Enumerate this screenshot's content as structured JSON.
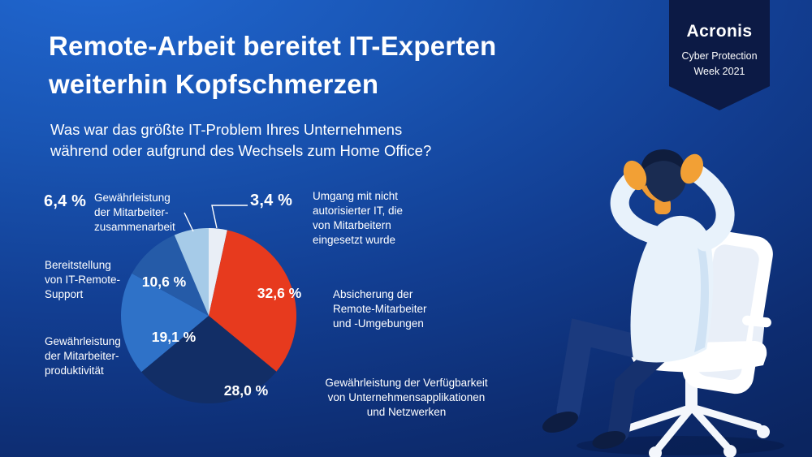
{
  "header": {
    "title": "Remote-Arbeit bereitet IT-Experten\nweiterhin Kopfschmerzen",
    "question": "Was war das größte IT-Problem Ihres Unternehmens\nwährend oder aufgrund des Wechsels zum Home Office?"
  },
  "badge": {
    "brand": "Acronis",
    "event": "Cyber Protection\nWeek 2021"
  },
  "chart_data": {
    "type": "pie",
    "title": "Was war das größte IT-Problem Ihres Unternehmens während oder aufgrund des Wechsels zum Home Office?",
    "unit": "%",
    "direction": "clockwise",
    "start_angle": "12 o'clock",
    "legend_position": "callouts-around-pie",
    "slices": [
      {
        "label": "Umgang mit nicht autorisierter IT, die von Mitarbeitern eingesetzt wurde",
        "value": 3.4,
        "display": "3,4 %",
        "color": "#e9eef6",
        "label_placement": "outside-top-right"
      },
      {
        "label": "Absicherung der Remote-Mitarbeiter und -Umgebungen",
        "value": 32.6,
        "display": "32,6 %",
        "color": "#e73a1e",
        "label_placement": "inside"
      },
      {
        "label": "Gewährleistung der Verfügbarkeit von Unternehmensapplikationen und Netzwerken",
        "value": 28.0,
        "display": "28,0 %",
        "color": "#122e66",
        "label_placement": "inside"
      },
      {
        "label": "Gewährleistung der Mitarbeiterproduktivität",
        "value": 19.1,
        "display": "19,1 %",
        "color": "#2f72c8",
        "label_placement": "inside"
      },
      {
        "label": "Bereitstellung von IT-Remote-Support",
        "value": 10.6,
        "display": "10,6 %",
        "color": "#255ba8",
        "label_placement": "inside"
      },
      {
        "label": "Gewährleistung der Mitarbeiterzusammenarbeit",
        "value": 6.4,
        "display": "6,4 %",
        "color": "#a6cbe8",
        "label_placement": "outside-top-left"
      }
    ]
  },
  "callouts": {
    "collaboration": {
      "text": "Gewährleistung\nder Mitarbeiter-\nzusammenarbeit"
    },
    "shadow_it": {
      "text": "Umgang mit nicht\nautorisierter IT, die\nvon Mitarbeitern\neingesetzt wurde"
    },
    "remote_support": {
      "text": "Bereitstellung\nvon IT-Remote-\nSupport"
    },
    "productivity": {
      "text": "Gewährleistung\nder Mitarbeiter-\nproduktivität"
    },
    "securing": {
      "text": "Absicherung der\nRemote-Mitarbeiter\nund -Umgebungen"
    },
    "availability": {
      "text": "Gewährleistung der Verfügbarkeit\nvon Unternehmensapplikationen\nund Netzwerken"
    }
  }
}
